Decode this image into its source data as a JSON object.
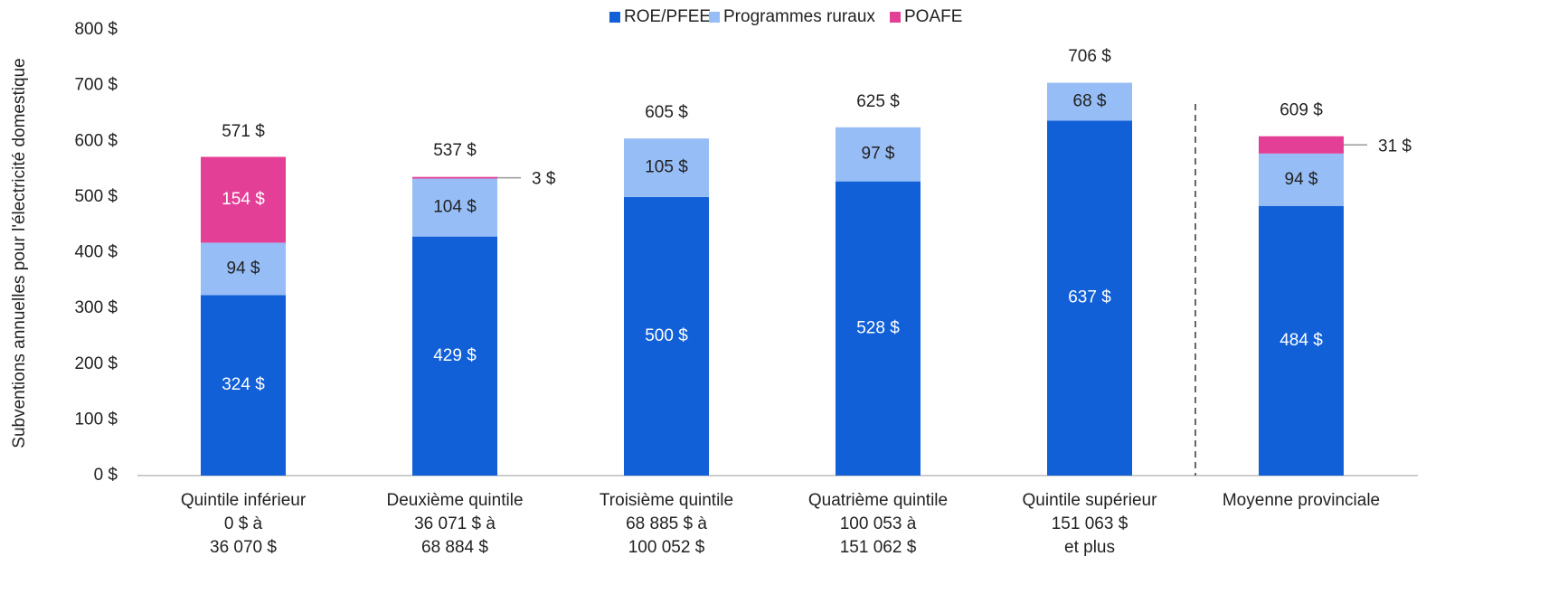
{
  "chart_data": {
    "type": "stacked_bar",
    "y_label": "Subventions annuelles pour l'électricité domestique",
    "categories": [
      [
        "Quintile inférieur",
        "0 $ à",
        "36 070 $"
      ],
      [
        "Deuxième quintile",
        "36 071 $ à",
        "68 884 $"
      ],
      [
        "Troisième quintile",
        "68 885 $ à",
        "100 052 $"
      ],
      [
        "Quatrième quintile",
        "100 053 à",
        "151 062 $"
      ],
      [
        "Quintile supérieur",
        "151 063 $",
        "et plus"
      ],
      [
        "Moyenne provinciale"
      ]
    ],
    "series": [
      {
        "name": "ROE/PFEE",
        "color": "#1160d7",
        "label_color": "#ffffff",
        "values": [
          324,
          429,
          500,
          528,
          637,
          484
        ],
        "value_labels": [
          "324 $",
          "429 $",
          "500 $",
          "528 $",
          "637 $",
          "484 $"
        ]
      },
      {
        "name": "Programmes ruraux",
        "color": "#96bdf6",
        "label_color": "#222222",
        "values": [
          94,
          104,
          105,
          97,
          68,
          94
        ],
        "value_labels": [
          "94 $",
          "104 $",
          "105 $",
          "97 $",
          "68 $",
          "94 $"
        ]
      },
      {
        "name": "POAFE",
        "color": "#e43f97",
        "label_color": "#ffffff",
        "values": [
          154,
          3,
          null,
          null,
          null,
          31
        ],
        "value_labels": [
          "154 $",
          "3 $",
          null,
          null,
          null,
          "31 $"
        ]
      }
    ],
    "totals": [
      571,
      537,
      605,
      625,
      706,
      609
    ],
    "total_labels": [
      "571 $",
      "537 $",
      "605 $",
      "625 $",
      "706 $",
      "609 $"
    ],
    "ylim": [
      0,
      800
    ],
    "yticks": [
      {
        "value": 0,
        "label": "0 $"
      },
      {
        "value": 100,
        "label": "100 $"
      },
      {
        "value": 200,
        "label": "200 $"
      },
      {
        "value": 300,
        "label": "300 $"
      },
      {
        "value": 400,
        "label": "400 $"
      },
      {
        "value": 500,
        "label": "500 $"
      },
      {
        "value": 600,
        "label": "600 $"
      },
      {
        "value": 700,
        "label": "700 $"
      },
      {
        "value": 800,
        "label": "800 $"
      }
    ],
    "grid": false,
    "legend": "top"
  }
}
